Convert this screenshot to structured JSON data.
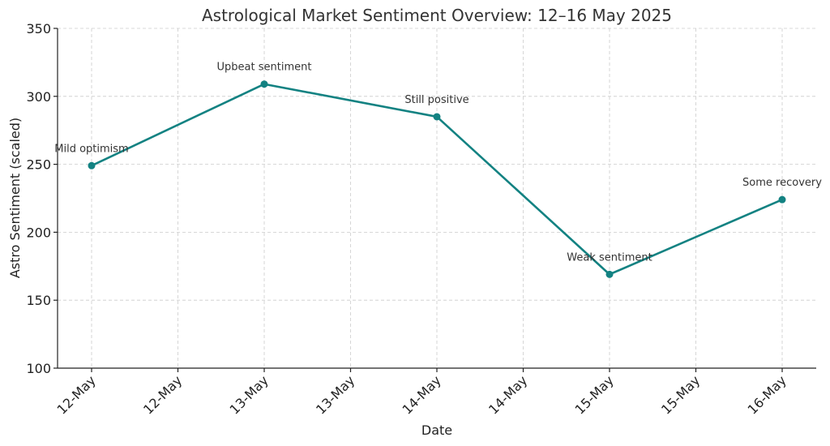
{
  "chart_data": {
    "type": "line",
    "title": "Astrological Market Sentiment Overview: 12–16 May 2025",
    "xlabel": "Date",
    "ylabel": "Astro Sentiment (scaled)",
    "ylim": [
      100,
      350
    ],
    "yticks": [
      100,
      150,
      200,
      250,
      300,
      350
    ],
    "xlim": [
      "2025-05-12",
      "2025-05-16"
    ],
    "xticks": [
      "2025-05-12T00:00",
      "2025-05-12T12:00",
      "2025-05-13T00:00",
      "2025-05-13T12:00",
      "2025-05-14T00:00",
      "2025-05-14T12:00",
      "2025-05-15T00:00",
      "2025-05-15T12:00",
      "2025-05-16T00:00"
    ],
    "xtick_labels": [
      "12-May",
      "12-May",
      "13-May",
      "13-May",
      "14-May",
      "14-May",
      "15-May",
      "15-May",
      "16-May"
    ],
    "grid": true,
    "series": [
      {
        "color": "#138282",
        "x": [
          "2025-05-12",
          "2025-05-13",
          "2025-05-14",
          "2025-05-15",
          "2025-05-16"
        ],
        "values": [
          249,
          309,
          285,
          169,
          224
        ],
        "annotations": [
          "Mild optimism",
          "Upbeat sentiment",
          "Still positive",
          "Weak sentiment",
          "Some recovery"
        ]
      }
    ]
  }
}
